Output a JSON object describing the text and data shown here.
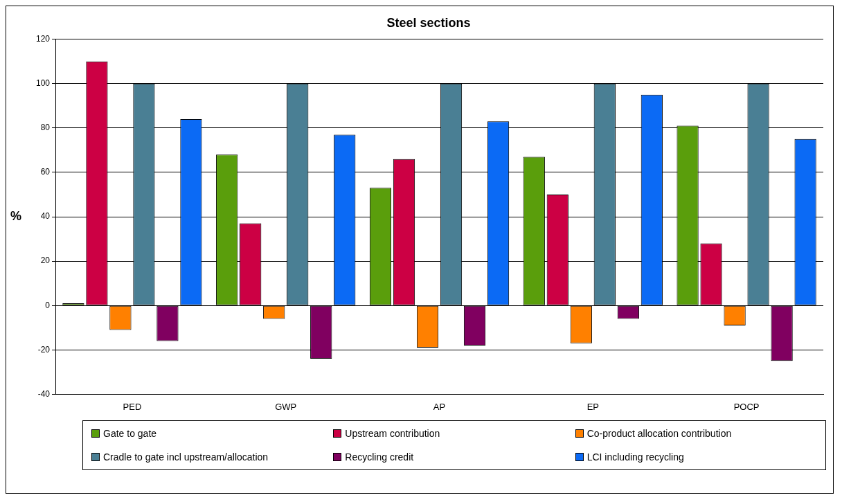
{
  "chart_data": {
    "type": "bar",
    "title": "Steel sections",
    "ylabel": "%",
    "categories": [
      "PED",
      "GWP",
      "AP",
      "EP",
      "POCP"
    ],
    "series": [
      {
        "name": "Gate to gate",
        "color": "#5a9e0c",
        "values": [
          1,
          68,
          53,
          67,
          81
        ]
      },
      {
        "name": "Upstream contribution",
        "color": "#cc0044",
        "values": [
          110,
          37,
          66,
          50,
          28
        ]
      },
      {
        "name": "Co-product allocation contribution",
        "color": "#ff8000",
        "values": [
          -11,
          -6,
          -19,
          -17,
          -9
        ]
      },
      {
        "name": "Cradle to gate incl upstream/allocation",
        "color": "#4a7f94",
        "values": [
          100,
          100,
          100,
          100,
          100
        ]
      },
      {
        "name": "Recycling credit",
        "color": "#800060",
        "values": [
          -16,
          -24,
          -18,
          -6,
          -25
        ]
      },
      {
        "name": "LCI including recycling",
        "color": "#0b6af5",
        "values": [
          84,
          77,
          83,
          95,
          75
        ]
      }
    ],
    "ylim": [
      -40,
      120
    ],
    "yticks": [
      -40,
      -20,
      0,
      20,
      40,
      60,
      80,
      100,
      120
    ],
    "grid": "y",
    "legend": "bottom"
  }
}
